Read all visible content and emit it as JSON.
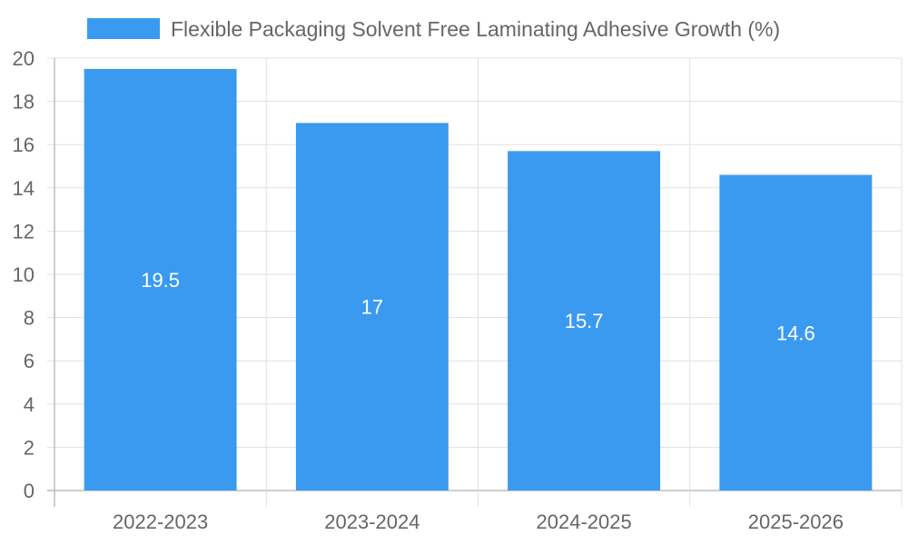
{
  "chart_data": {
    "type": "bar",
    "title": "",
    "xlabel": "",
    "ylabel": "",
    "categories": [
      "2022-2023",
      "2023-2024",
      "2024-2025",
      "2025-2026"
    ],
    "series": [
      {
        "name": "Flexible Packaging Solvent Free Laminating Adhesive Growth (%)",
        "values": [
          19.5,
          17,
          15.7,
          14.6
        ],
        "color": "#3a9af0"
      }
    ],
    "data_labels": [
      "19.5",
      "17",
      "15.7",
      "14.6"
    ],
    "ylim": [
      0,
      20
    ],
    "yticks": [
      0,
      2,
      4,
      6,
      8,
      10,
      12,
      14,
      16,
      18,
      20
    ],
    "grid": true,
    "legend_position": "top-center"
  }
}
